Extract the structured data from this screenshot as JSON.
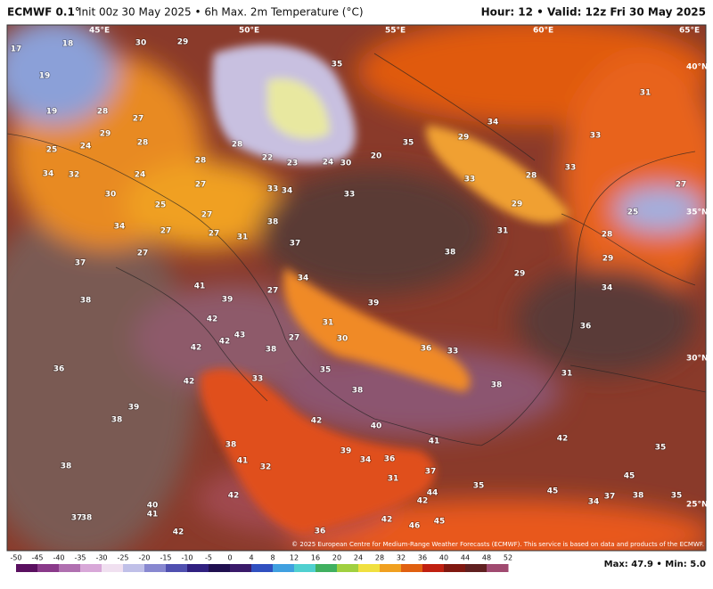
{
  "header": {
    "model": "ECMWF 0.1°",
    "init": "Init 00z 30 May 2025 • 6h Max. 2m Temperature (°C)",
    "hour": "Hour: 12 • Valid: 12z Fri 30 May 2025"
  },
  "map": {
    "coords": [
      "45°E",
      "50°E",
      "55°E",
      "60°E",
      "65°E",
      "40°N",
      "35°N",
      "30°N",
      "25°N"
    ],
    "labels": [
      17,
      18,
      19,
      19,
      30,
      29,
      28,
      27,
      29,
      25,
      24,
      28,
      28,
      28,
      22,
      23,
      24,
      30,
      20,
      35,
      34,
      32,
      24,
      30,
      27,
      33,
      34,
      33,
      25,
      34,
      27,
      27,
      27,
      31,
      38,
      37,
      27,
      37,
      38,
      41,
      39,
      34,
      27,
      42,
      43,
      42,
      42,
      42,
      31,
      30,
      27,
      38,
      33,
      35,
      38,
      39,
      36,
      33,
      38,
      38,
      31,
      29,
      34,
      29,
      35,
      33,
      28,
      29,
      33,
      33,
      31,
      27,
      25,
      28,
      29,
      34,
      36,
      31,
      42,
      35,
      45,
      37,
      38,
      35,
      34,
      45,
      35,
      44,
      42,
      37,
      31,
      36,
      34,
      39,
      40,
      42,
      41,
      36,
      38,
      39,
      38,
      38,
      41,
      32,
      42,
      40,
      41,
      37,
      38,
      42,
      36,
      42,
      46,
      45
    ],
    "copyright": "© 2025 European Centre for Medium-Range Weather Forecasts (ECMWF). This service is based on data and products of the ECMWF."
  },
  "colorbar": {
    "ticks": [
      -50,
      -45,
      -40,
      -35,
      -30,
      -25,
      -20,
      -15,
      -10,
      -5,
      0,
      4,
      8,
      12,
      16,
      20,
      24,
      28,
      32,
      36,
      40,
      44,
      48,
      52
    ]
  },
  "footer": {
    "maxmin": "Max: 47.9 • Min: 5.0"
  }
}
